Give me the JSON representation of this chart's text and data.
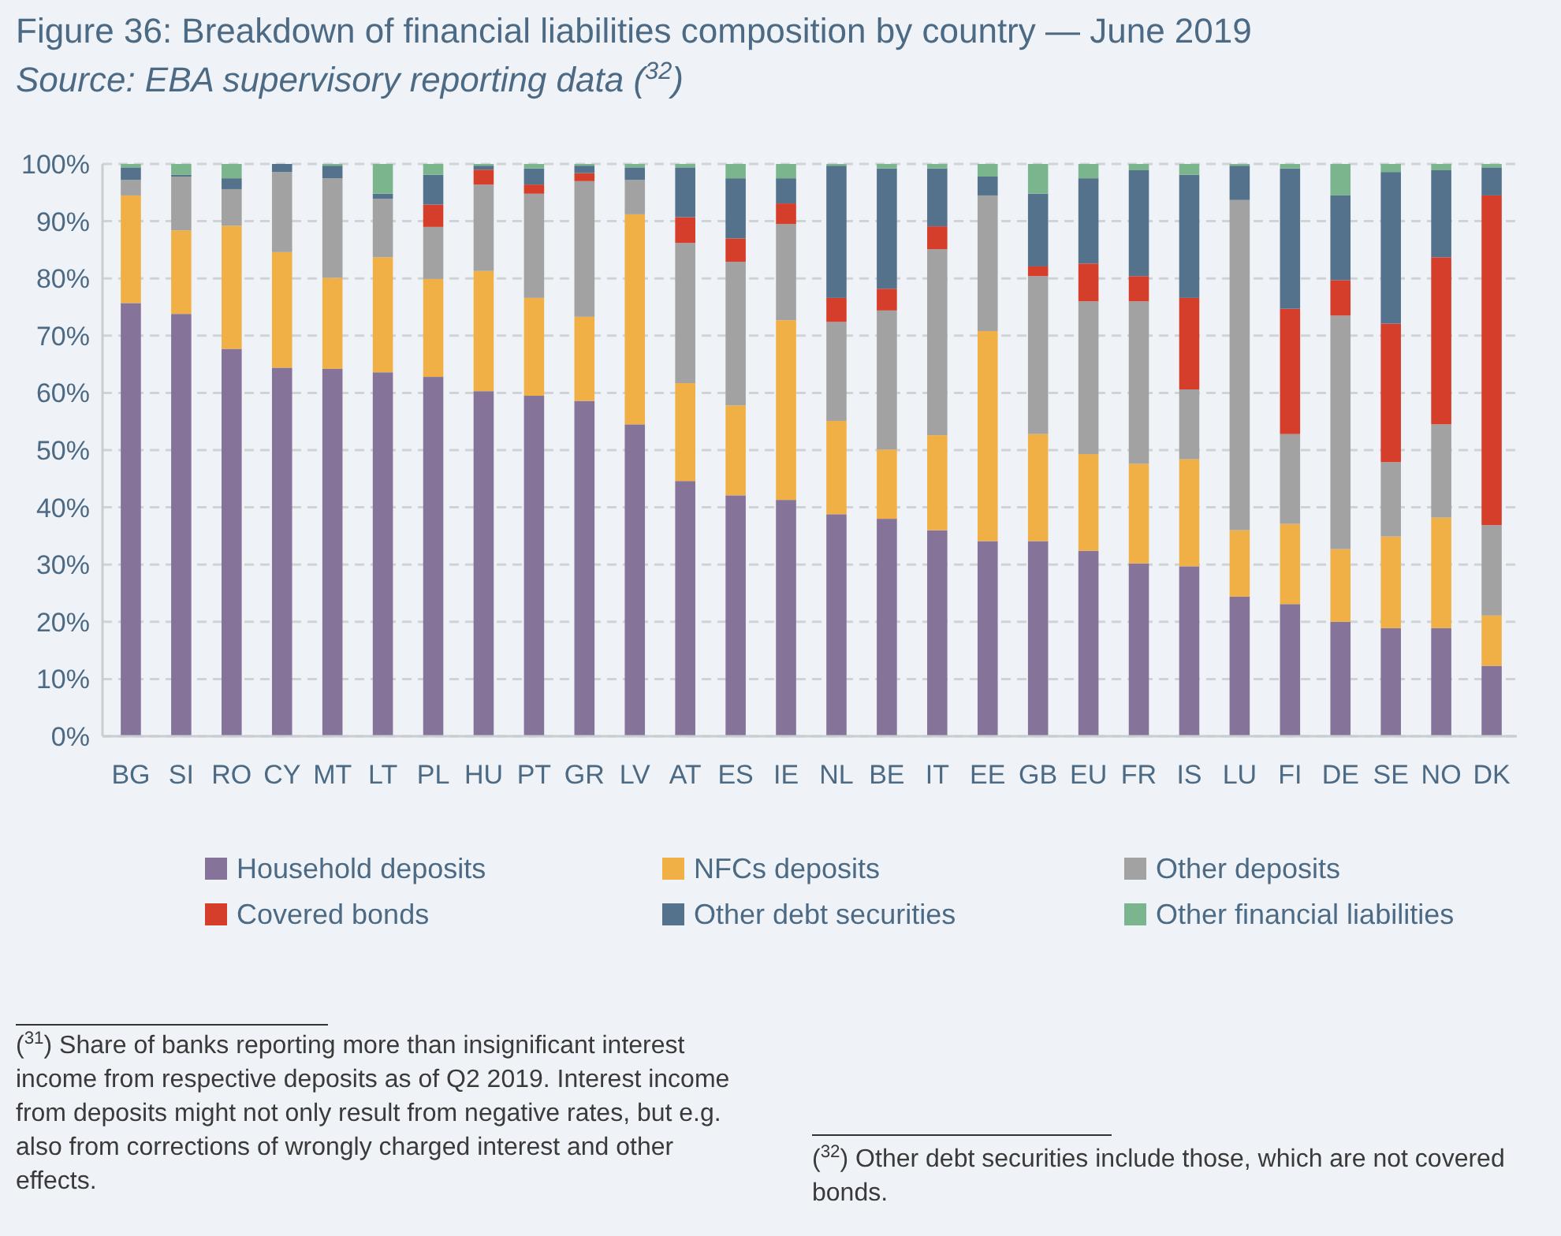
{
  "chart_data": {
    "type": "bar",
    "stacked": true,
    "title": "Figure 36: Breakdown of financial liabilities composition by country — June 2019",
    "subtitle": "Source: EBA supervisory reporting data ($^{32}$)",
    "categories": [
      "BG",
      "SI",
      "RO",
      "CY",
      "MT",
      "LT",
      "PL",
      "HU",
      "PT",
      "GR",
      "LV",
      "AT",
      "ES",
      "IE",
      "NL",
      "BE",
      "IT",
      "EE",
      "GB",
      "EU",
      "FR",
      "IS",
      "LU",
      "FI",
      "DE",
      "SE",
      "NO",
      "DK"
    ],
    "series": [
      {
        "name": "Household deposits",
        "color": "#85739a",
        "values": [
          75.7,
          73.8,
          67.7,
          64.4,
          64.2,
          63.6,
          62.8,
          60.3,
          59.5,
          58.6,
          54.5,
          44.6,
          42.1,
          41.3,
          38.8,
          38.0,
          36.0,
          34.1,
          34.1,
          32.4,
          30.2,
          29.7,
          24.4,
          23.1,
          20.0,
          18.9,
          18.9,
          12.3
        ]
      },
      {
        "name": "NFCs deposits",
        "color": "#f0b045",
        "values": [
          18.8,
          14.6,
          21.5,
          20.2,
          15.9,
          20.1,
          17.1,
          21.0,
          17.1,
          14.7,
          36.7,
          17.1,
          15.7,
          31.4,
          16.3,
          12.1,
          16.6,
          36.7,
          18.7,
          16.9,
          17.4,
          18.7,
          11.6,
          14.0,
          12.7,
          16.0,
          19.3,
          8.8
        ]
      },
      {
        "name": "Other deposits",
        "color": "#a2a2a2",
        "values": [
          2.7,
          9.4,
          6.4,
          14.0,
          17.4,
          10.2,
          9.1,
          15.1,
          18.2,
          23.7,
          6.0,
          24.5,
          25.1,
          16.8,
          17.3,
          24.3,
          32.5,
          23.7,
          27.6,
          26.7,
          28.4,
          12.2,
          57.7,
          15.7,
          40.8,
          13.0,
          16.3,
          15.8
        ]
      },
      {
        "name": "Covered bonds",
        "color": "#d53e2a",
        "values": [
          0,
          0,
          0,
          0,
          0,
          0,
          3.9,
          2.6,
          1.6,
          1.4,
          0,
          4.5,
          4.1,
          3.6,
          4.2,
          3.8,
          4.0,
          0,
          1.7,
          6.6,
          4.4,
          16.0,
          0,
          21.9,
          6.2,
          24.2,
          29.2,
          57.6
        ]
      },
      {
        "name": "Other debt securities",
        "color": "#54728c",
        "values": [
          2.2,
          0.3,
          1.9,
          1.4,
          2.2,
          0.9,
          5.2,
          0.7,
          2.8,
          1.3,
          2.2,
          8.7,
          10.5,
          4.4,
          23.1,
          21.0,
          10.1,
          3.3,
          12.7,
          14.9,
          18.5,
          21.5,
          6.0,
          24.5,
          14.8,
          26.5,
          15.2,
          4.9
        ]
      },
      {
        "name": "Other financial liabilities",
        "color": "#7bb58d",
        "values": [
          0.6,
          1.9,
          2.5,
          0,
          0.3,
          5.2,
          1.9,
          0.3,
          0.8,
          0.3,
          0.6,
          0.6,
          2.5,
          2.5,
          0.3,
          0.8,
          0.8,
          2.2,
          5.2,
          2.5,
          1.1,
          1.9,
          0.3,
          0.8,
          5.5,
          1.4,
          1.1,
          0.6
        ]
      }
    ],
    "ylim": [
      0,
      100
    ],
    "yticks": [
      {
        "value": 0,
        "label": "0%"
      },
      {
        "value": 10,
        "label": "10%"
      },
      {
        "value": 20,
        "label": "20%"
      },
      {
        "value": 30,
        "label": "30%"
      },
      {
        "value": 40,
        "label": "40%"
      },
      {
        "value": 50,
        "label": "50%"
      },
      {
        "value": 60,
        "label": "60%"
      },
      {
        "value": 70,
        "label": "70%"
      },
      {
        "value": 80,
        "label": "80%"
      },
      {
        "value": 90,
        "label": "90%"
      },
      {
        "value": 100,
        "label": "100%"
      }
    ],
    "grid": "y",
    "line_style": "dashed",
    "legend": "bottom",
    "annotations": [
      "($^{31}$) Share of banks reporting more than insignificant interest income from respective deposits as of Q2 2019. Interest income from deposits might not only result from negative rates, but e.g. also from corrections of wrongly charged interest and other effects.",
      "($^{32}$) Other debt securities include those, which are not covered bonds."
    ]
  }
}
